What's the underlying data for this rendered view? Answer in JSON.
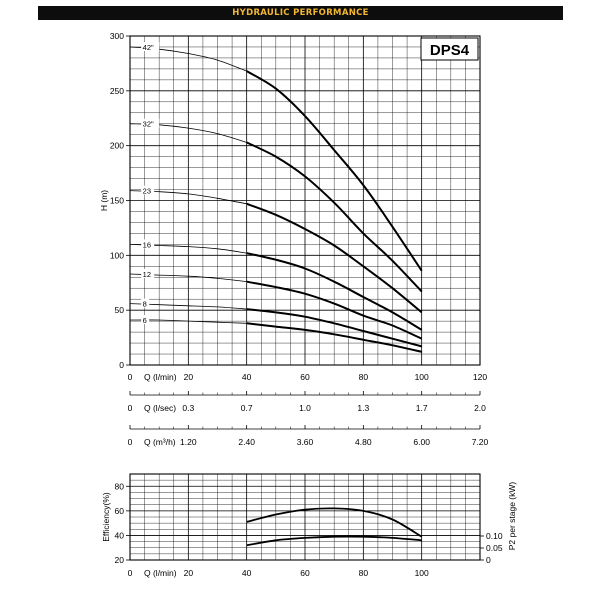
{
  "header": {
    "title": "HYDRAULIC PERFORMANCE"
  },
  "colors": {
    "header_bg": "#0d0d0d",
    "header_text": "#f2b632",
    "curve": "#000000",
    "grid": "#000000"
  },
  "chart_data": [
    {
      "type": "line",
      "model_label": "DPS4",
      "ylabel": "H (m)",
      "xlabel": "Q (l/min)",
      "xlim": [
        0,
        120
      ],
      "ylim": [
        0,
        300
      ],
      "x_ticks": [
        0,
        20,
        40,
        60,
        80,
        100,
        120
      ],
      "y_ticks": [
        0,
        50,
        100,
        150,
        200,
        250,
        300
      ],
      "grid": true,
      "secondary_axes": [
        {
          "label": "Q (l/sec)",
          "ticks": [
            "0",
            "0.3",
            "0.7",
            "1.0",
            "1.3",
            "1.7",
            "2.0"
          ]
        },
        {
          "label": "Q (m³/h)",
          "ticks": [
            "0",
            "1.20",
            "2.40",
            "3.60",
            "4.80",
            "6.00",
            "7.20"
          ]
        }
      ],
      "series": [
        {
          "name": "42\"",
          "x": [
            0,
            10,
            20,
            30,
            40,
            50,
            60,
            70,
            80,
            90,
            100
          ],
          "y": [
            290,
            288,
            284,
            278,
            268,
            252,
            227,
            196,
            164,
            126,
            86
          ]
        },
        {
          "name": "32\"",
          "x": [
            0,
            10,
            20,
            30,
            40,
            50,
            60,
            70,
            80,
            90,
            100
          ],
          "y": [
            220,
            219,
            216,
            211,
            203,
            190,
            172,
            148,
            120,
            95,
            67
          ]
        },
        {
          "name": "23",
          "x": [
            0,
            10,
            20,
            30,
            40,
            50,
            60,
            70,
            80,
            90,
            100
          ],
          "y": [
            159,
            158,
            156,
            152,
            147,
            137,
            124,
            109,
            90,
            70,
            48
          ]
        },
        {
          "name": "16",
          "x": [
            0,
            10,
            20,
            30,
            40,
            50,
            60,
            70,
            80,
            90,
            100
          ],
          "y": [
            110,
            109,
            108,
            106,
            102,
            96,
            88,
            76,
            62,
            48,
            32
          ]
        },
        {
          "name": "12",
          "x": [
            0,
            10,
            20,
            30,
            40,
            50,
            60,
            70,
            80,
            90,
            100
          ],
          "y": [
            83,
            82,
            81,
            79,
            76,
            71,
            65,
            56,
            45,
            36,
            24
          ]
        },
        {
          "name": "8",
          "x": [
            0,
            10,
            20,
            30,
            40,
            50,
            60,
            70,
            80,
            90,
            100
          ],
          "y": [
            56,
            55,
            54,
            53,
            51,
            48,
            44,
            38,
            31,
            24,
            17
          ]
        },
        {
          "name": "6",
          "x": [
            0,
            10,
            20,
            30,
            40,
            50,
            60,
            70,
            80,
            90,
            100
          ],
          "y": [
            41,
            41,
            40,
            39,
            38,
            35,
            32,
            28,
            23,
            18,
            12
          ]
        }
      ]
    },
    {
      "type": "line",
      "ylabel": "Efficiency(%)",
      "y2label": "P2 per stage (kW)",
      "xlabel": "Q (l/min)",
      "xlim": [
        0,
        120
      ],
      "ylim": [
        20,
        90
      ],
      "x_ticks": [
        0,
        20,
        40,
        60,
        80,
        100
      ],
      "y_ticks": [
        20,
        40,
        60,
        80
      ],
      "y2_ticks": [
        "0.10",
        "0.05",
        "0"
      ],
      "grid": true,
      "series": [
        {
          "axis": "efficiency",
          "x": [
            40,
            50,
            60,
            70,
            80,
            90,
            100
          ],
          "y": [
            51,
            57,
            61,
            62,
            60,
            53,
            39
          ]
        },
        {
          "axis": "power",
          "x": [
            40,
            50,
            60,
            70,
            80,
            90,
            100
          ],
          "y": [
            32,
            36,
            38,
            39,
            39,
            38,
            36
          ]
        }
      ]
    }
  ]
}
